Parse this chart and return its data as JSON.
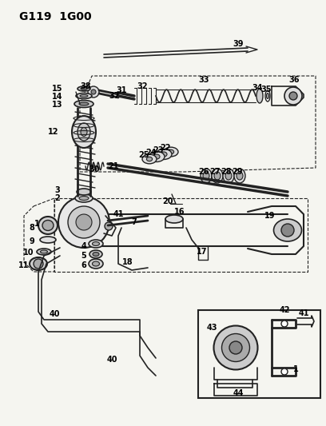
{
  "title": "G119 1G00",
  "bg": "#f5f5f0",
  "line_color": "#222222",
  "figw": 4.08,
  "figh": 5.33,
  "dpi": 100
}
